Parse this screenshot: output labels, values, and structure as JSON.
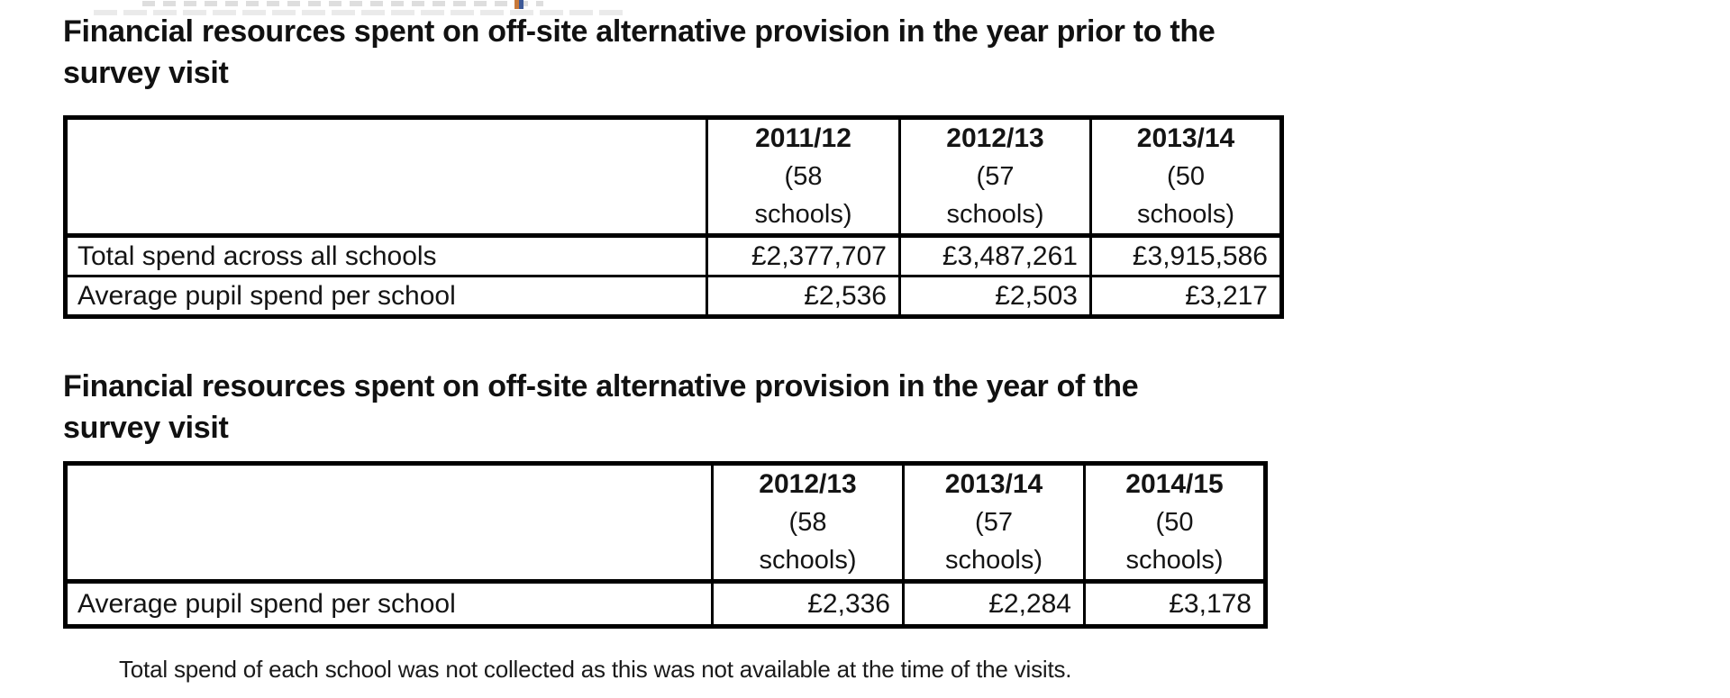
{
  "sections": [
    {
      "title": "Financial resources spent on off-site alternative provision in the year prior to the survey visit",
      "title_lines": [
        "Financial resources spent on off-site alternative provision in the year prior to the",
        "survey visit"
      ],
      "table": {
        "columns": [
          {
            "year": "2011/12",
            "sub": [
              "(58",
              "schools)"
            ]
          },
          {
            "year": "2012/13",
            "sub": [
              "(57",
              "schools)"
            ]
          },
          {
            "year": "2013/14",
            "sub": [
              "(50",
              "schools)"
            ]
          }
        ],
        "rows": [
          {
            "label": "Total spend across all schools",
            "values": [
              "£2,377,707",
              "£3,487,261",
              "£3,915,586"
            ]
          },
          {
            "label": "Average pupil spend per school",
            "values": [
              "£2,536",
              "£2,503",
              "£3,217"
            ]
          }
        ]
      }
    },
    {
      "title": "Financial resources spent on off-site alternative provision in the year of the survey visit",
      "title_lines": [
        "Financial resources spent on off-site alternative provision in the year of the",
        "survey visit"
      ],
      "table": {
        "columns": [
          {
            "year": "2012/13",
            "sub": [
              "(58",
              "schools)"
            ]
          },
          {
            "year": "2013/14",
            "sub": [
              "(57",
              "schools)"
            ]
          },
          {
            "year": "2014/15",
            "sub": [
              "(50",
              "schools)"
            ]
          }
        ],
        "rows": [
          {
            "label": "Average pupil spend per school",
            "values": [
              "£2,336",
              "£2,284",
              "£3,178"
            ]
          }
        ]
      }
    }
  ],
  "footnote": "Total spend of each school was not collected as this was not available at the time of the visits.",
  "colors": {
    "text": "#121212",
    "table_border": "#000000",
    "background": "#ffffff"
  }
}
